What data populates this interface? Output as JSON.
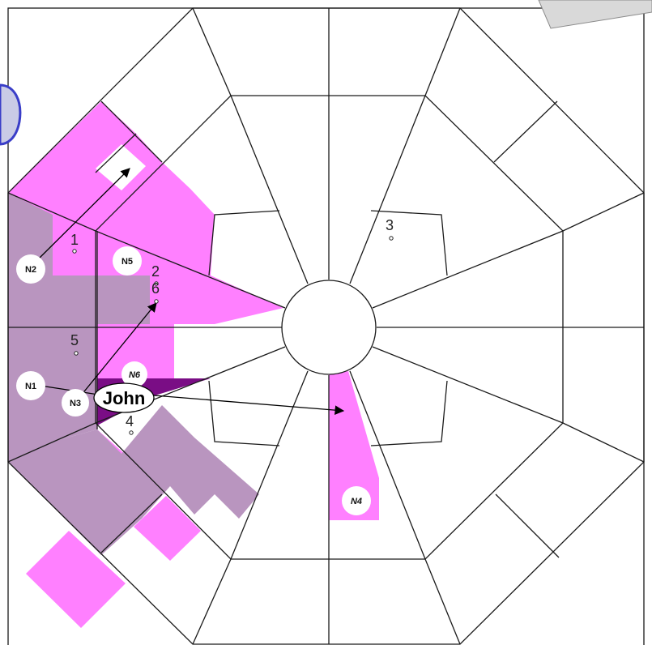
{
  "colors": {
    "pink": "#ff80ff",
    "mauve": "#b995bf",
    "purple": "#7a0d85",
    "lines": "#1a1a1a"
  },
  "zone_numbers": [
    "1",
    "2",
    "3",
    "4",
    "5",
    "6"
  ],
  "nodes": [
    "N1",
    "N2",
    "N3",
    "N4",
    "N5",
    "N6"
  ],
  "agent": {
    "name": "John"
  }
}
